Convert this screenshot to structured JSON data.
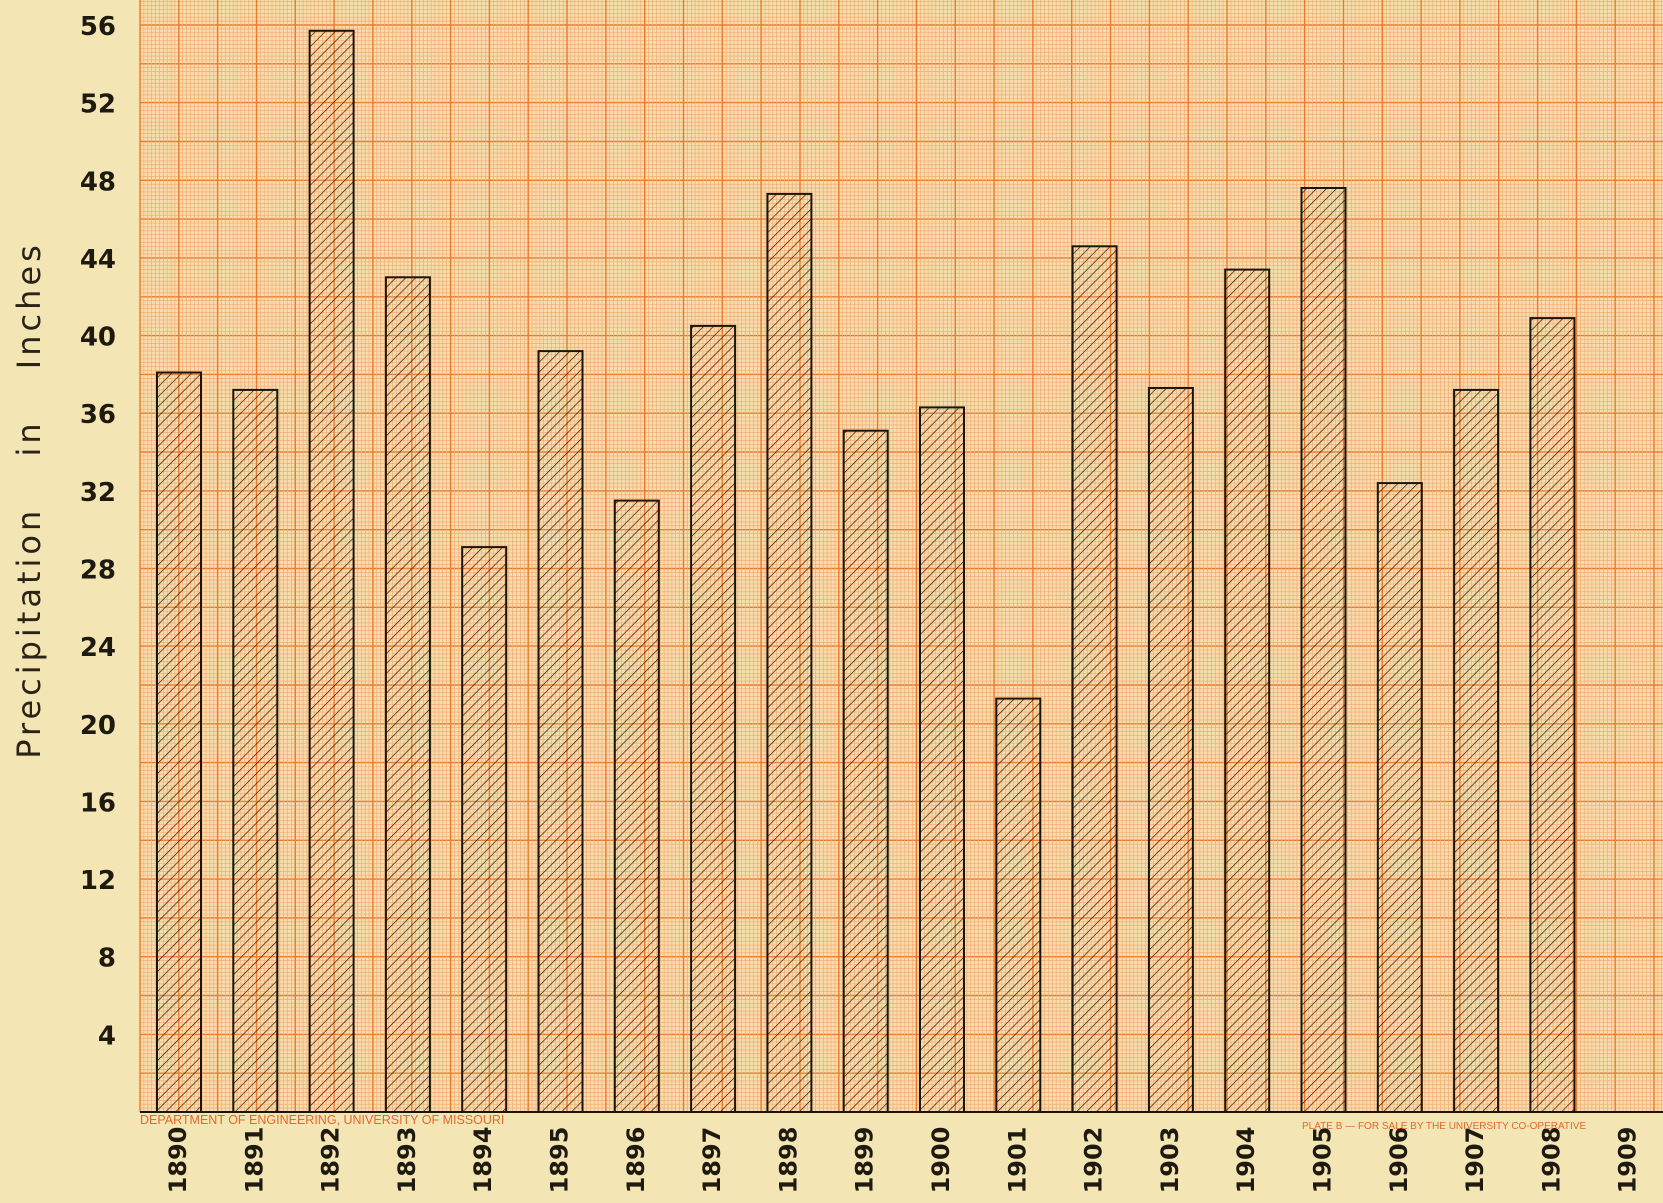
{
  "chart_data": {
    "type": "bar",
    "ylabel": "Precipitation in Inches",
    "ylim": [
      0,
      56
    ],
    "yticks": [
      4,
      8,
      12,
      16,
      20,
      24,
      28,
      32,
      36,
      40,
      44,
      48,
      52,
      56
    ],
    "categories": [
      "1890",
      "1891",
      "1892",
      "1893",
      "1894",
      "1895",
      "1896",
      "1897",
      "1898",
      "1899",
      "1900",
      "1901",
      "1902",
      "1903",
      "1904",
      "1905",
      "1906",
      "1907",
      "1908",
      "1909"
    ],
    "values": [
      38.1,
      37.2,
      55.7,
      43.0,
      29.1,
      39.2,
      31.5,
      40.5,
      47.3,
      35.1,
      36.3,
      21.3,
      44.6,
      37.3,
      43.4,
      47.6,
      32.4,
      37.2,
      40.9,
      null
    ],
    "grid": true,
    "colors": {
      "paper": "#f3e6b4",
      "grid_fine": "#f2a56b",
      "grid_major": "#ec7a2c",
      "ink": "#1b1408",
      "footer": "#e2692a"
    }
  },
  "footer": {
    "left": "DEPARTMENT OF ENGINEERING, UNIVERSITY OF MISSOURI",
    "right": "PLATE B — FOR SALE BY THE UNIVERSITY CO-OPERATIVE"
  }
}
